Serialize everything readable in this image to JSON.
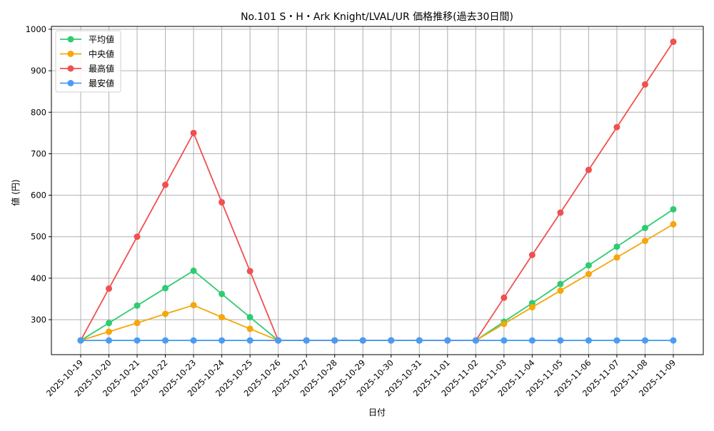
{
  "chart_data": {
    "type": "line",
    "title": "No.101 S・H・Ark Knight/LVAL/UR 価格推移(過去30日間)",
    "xlabel": "日付",
    "ylabel": "値 (円)",
    "ylim": [
      212,
      1006
    ],
    "yticks": [
      300,
      400,
      500,
      600,
      700,
      800,
      900,
      1000
    ],
    "grid": true,
    "legend_position": "upper left",
    "categories": [
      "2025-10-19",
      "2025-10-20",
      "2025-10-21",
      "2025-10-22",
      "2025-10-23",
      "2025-10-24",
      "2025-10-25",
      "2025-10-26",
      "2025-10-27",
      "2025-10-28",
      "2025-10-29",
      "2025-10-30",
      "2025-10-31",
      "2025-11-01",
      "2025-11-02",
      "2025-11-03",
      "2025-11-04",
      "2025-11-05",
      "2025-11-06",
      "2025-11-07",
      "2025-11-08",
      "2025-11-09"
    ],
    "series": [
      {
        "name": "平均値",
        "color": "#2ecc71",
        "values": [
          250,
          292,
          334,
          376,
          418,
          362,
          306,
          250,
          250,
          250,
          250,
          250,
          250,
          250,
          250,
          295,
          340,
          386,
          431,
          476,
          521,
          566
        ]
      },
      {
        "name": "中央値",
        "color": "#f5a70b",
        "values": [
          250,
          271,
          292,
          314,
          335,
          306,
          278,
          250,
          250,
          250,
          250,
          250,
          250,
          250,
          250,
          290,
          330,
          370,
          410,
          450,
          490,
          530
        ]
      },
      {
        "name": "最高値",
        "color": "#f05050",
        "values": [
          250,
          375,
          500,
          625,
          750,
          583,
          417,
          250,
          250,
          250,
          250,
          250,
          250,
          250,
          250,
          353,
          456,
          558,
          661,
          764,
          867,
          970
        ]
      },
      {
        "name": "最安値",
        "color": "#4a9bf5",
        "values": [
          250,
          250,
          250,
          250,
          250,
          250,
          250,
          250,
          250,
          250,
          250,
          250,
          250,
          250,
          250,
          250,
          250,
          250,
          250,
          250,
          250,
          250
        ]
      }
    ]
  }
}
